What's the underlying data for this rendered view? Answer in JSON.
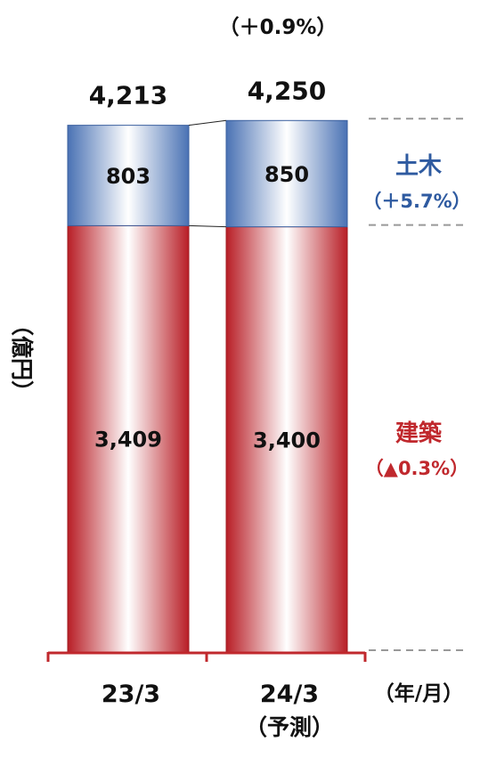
{
  "chart_data": {
    "type": "bar",
    "stacked": true,
    "unit_label": "（億円）",
    "xaxis_unit_label": "（年/月）",
    "categories": [
      "23/3",
      "24/3"
    ],
    "category_sublabels": [
      "",
      "（予測）"
    ],
    "series": [
      {
        "name": "建築",
        "change_label": "（▲0.3%）",
        "color": "#c0282d",
        "values": [
          3409,
          3400
        ],
        "value_labels": [
          "3,409",
          "3,400"
        ]
      },
      {
        "name": "土木",
        "change_label": "（＋5.7%）",
        "color": "#2e5aa0",
        "values": [
          803,
          850
        ],
        "value_labels": [
          "803",
          "850"
        ]
      }
    ],
    "totals": [
      4213,
      4250
    ],
    "total_labels": [
      "4,213",
      "4,250"
    ],
    "total_change_label": "（＋0.9%）",
    "grid": false,
    "legend": "right"
  }
}
